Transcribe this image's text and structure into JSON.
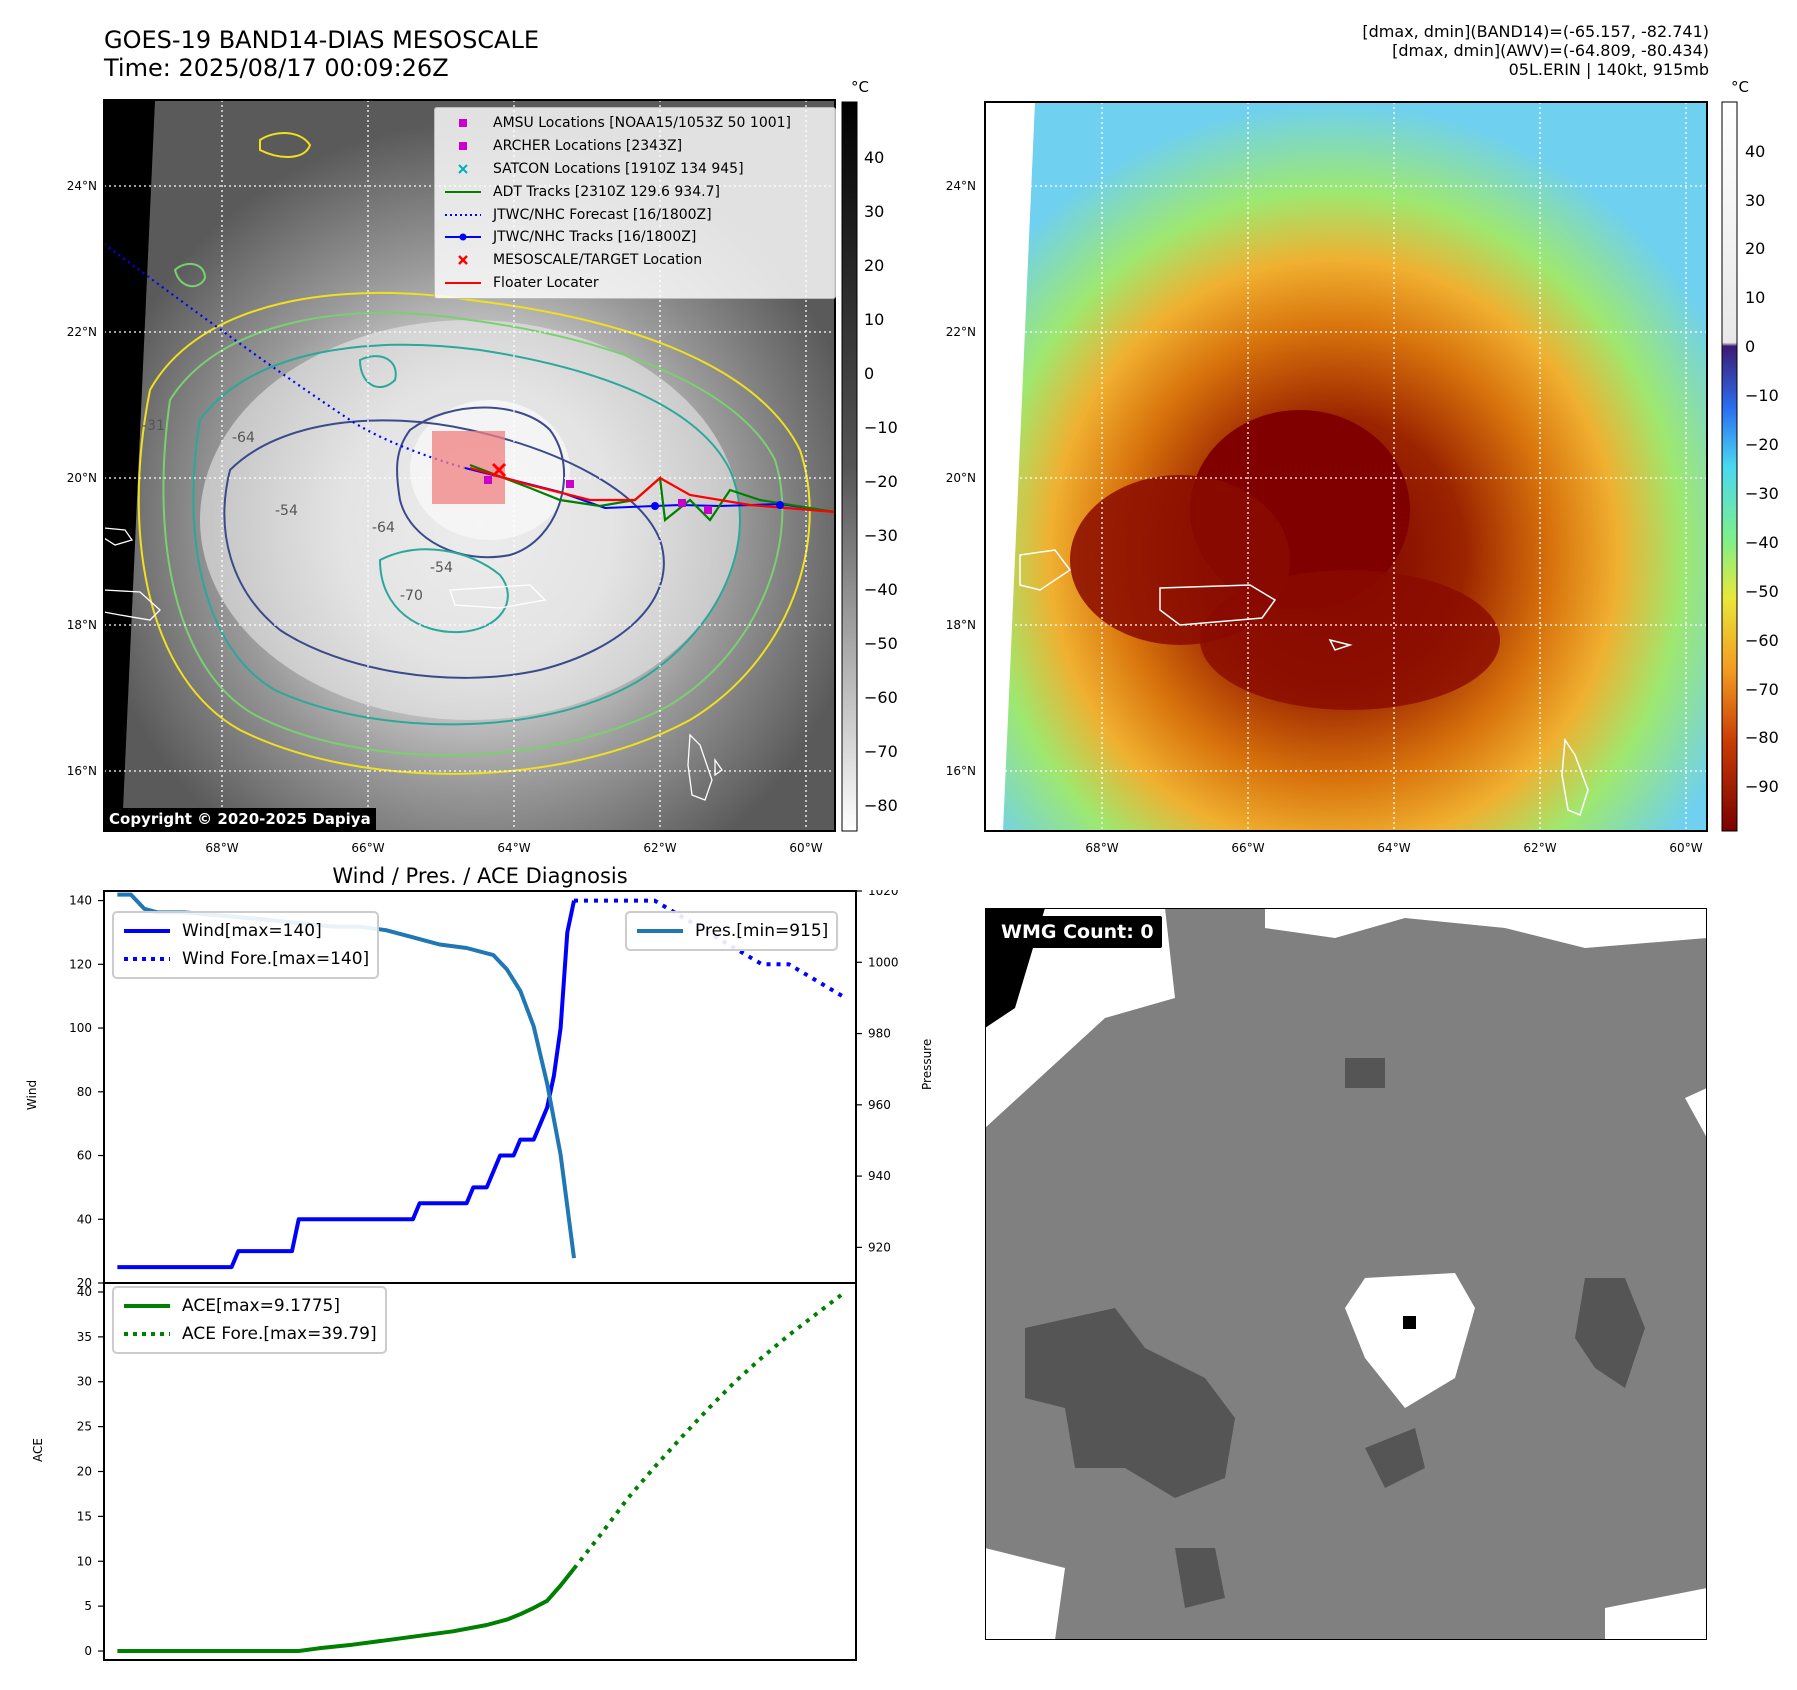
{
  "header": {
    "title_line1": "GOES-19 BAND14-DIAS MESOSCALE",
    "title_line2": "Time: 2025/08/17 00:09:26Z",
    "stat_line1": "[dmax, dmin](BAND14)=(-65.157, -82.741)",
    "stat_line2": "[dmax, dmin](AWV)=(-64.809, -80.434)",
    "stat_line3": "05L.ERIN | 140kt, 915mb"
  },
  "map_axes": {
    "lat_labels": [
      "24°N",
      "22°N",
      "20°N",
      "18°N",
      "16°N"
    ],
    "lon_labels": [
      "68°W",
      "66°W",
      "64°W",
      "62°W",
      "60°W"
    ],
    "colorbar_unit": "°C"
  },
  "ir_panel": {
    "colorbar_ticks": [
      "40",
      "30",
      "20",
      "10",
      "0",
      "−10",
      "−20",
      "−30",
      "−40",
      "−50",
      "−60",
      "−70",
      "−80"
    ],
    "copyright": "Copyright © 2020-2025 Dapiya",
    "contour_labels": [
      "-54",
      "-64",
      "-70",
      "-64",
      "-54",
      "-31"
    ],
    "legend": [
      {
        "label": "AMSU Locations [NOAA15/1053Z 50 1001]",
        "kind": "square",
        "color": "#cc00cc"
      },
      {
        "label": "ARCHER Locations [2343Z]",
        "kind": "square",
        "color": "#cc00cc"
      },
      {
        "label": "SATCON Locations [1910Z 134 945]",
        "kind": "x",
        "color": "#00b3b3"
      },
      {
        "label": "ADT Tracks [2310Z 129.6 934.7]",
        "kind": "line",
        "color": "#008000"
      },
      {
        "label": "JTWC/NHC Forecast [16/1800Z]",
        "kind": "dotted",
        "color": "#0000ff"
      },
      {
        "label": "JTWC/NHC Tracks [16/1800Z]",
        "kind": "line-dot",
        "color": "#0000ff"
      },
      {
        "label": "MESOSCALE/TARGET Location",
        "kind": "x",
        "color": "#ff0000"
      },
      {
        "label": "Floater Locater",
        "kind": "line",
        "color": "#ff0000"
      }
    ]
  },
  "wv_panel": {
    "colorbar_ticks": [
      "40",
      "30",
      "20",
      "10",
      "0",
      "−10",
      "−20",
      "−30",
      "−40",
      "−50",
      "−60",
      "−70",
      "−80",
      "−90"
    ]
  },
  "diagnosis": {
    "title": "Wind / Pres. / ACE Diagnosis",
    "wind_ylabel": "Wind",
    "pres_ylabel": "Pressure",
    "ace_ylabel": "ACE",
    "wind_legend": [
      "Wind[max=140]",
      "Wind Fore.[max=140]"
    ],
    "pres_legend": [
      "Pres.[min=915]"
    ],
    "ace_legend": [
      "ACE[max=9.1775]",
      "ACE Fore.[max=39.79]"
    ]
  },
  "wmg_panel": {
    "label": "WMG Count: 0"
  },
  "chart_data": [
    {
      "type": "line",
      "name": "wind",
      "ylim": [
        20,
        143
      ],
      "yticks": [
        20,
        40,
        60,
        80,
        100,
        120,
        140
      ],
      "x": [
        0,
        1,
        2,
        3,
        4,
        5,
        6,
        7,
        8,
        9,
        10,
        11,
        12,
        13,
        14,
        15,
        16,
        17,
        18,
        19,
        20,
        21,
        22,
        23,
        24,
        25,
        26,
        27,
        28,
        29,
        30,
        31,
        32,
        33,
        34,
        35,
        36,
        37,
        38,
        39,
        40,
        41,
        42,
        43,
        44,
        45,
        46,
        47,
        48,
        49,
        50,
        51,
        52,
        53,
        54,
        55,
        56,
        57,
        58,
        59,
        60,
        61,
        62,
        63,
        64,
        65,
        66,
        67,
        68,
        69,
        70,
        71,
        72,
        73,
        74,
        75,
        76,
        77,
        78,
        79,
        80,
        81,
        82,
        83,
        84,
        85,
        86,
        87,
        88,
        89,
        90,
        91,
        92,
        93,
        94,
        95,
        96,
        97,
        98,
        99,
        100,
        101,
        102,
        103,
        104,
        105,
        106,
        107,
        108
      ],
      "series": [
        {
          "name": "Wind[max=140]",
          "color": "#0000ff",
          "style": "solid",
          "x": [
            0,
            1,
            2,
            3,
            4,
            5,
            6,
            7,
            8,
            9,
            10,
            11,
            12,
            13,
            14,
            15,
            16,
            17,
            18,
            19,
            20,
            21,
            22,
            23,
            24,
            25,
            26,
            27,
            28,
            29,
            30,
            31,
            32,
            33,
            34,
            35,
            36,
            37,
            38,
            39,
            40,
            41,
            42,
            43,
            44,
            45,
            46,
            47,
            48,
            49,
            50,
            51,
            52,
            53,
            54,
            55,
            56,
            57,
            58,
            59,
            60,
            61,
            62,
            63,
            64,
            65,
            66,
            67,
            68
          ],
          "values": [
            25,
            25,
            25,
            25,
            25,
            25,
            25,
            25,
            25,
            25,
            25,
            25,
            25,
            25,
            25,
            25,
            25,
            25,
            30,
            30,
            30,
            30,
            30,
            30,
            30,
            30,
            30,
            40,
            40,
            40,
            40,
            40,
            40,
            40,
            40,
            40,
            40,
            40,
            40,
            40,
            40,
            40,
            40,
            40,
            40,
            45,
            45,
            45,
            45,
            45,
            45,
            45,
            45,
            50,
            50,
            50,
            55,
            60,
            60,
            60,
            65,
            65,
            65,
            70,
            75,
            85,
            100,
            130,
            140
          ]
        },
        {
          "name": "Wind Fore.[max=140]",
          "color": "#0000ff",
          "style": "dotted",
          "x": [
            68,
            72,
            76,
            80,
            84,
            88,
            92,
            96,
            100,
            104,
            108
          ],
          "values": [
            140,
            140,
            140,
            140,
            135,
            130,
            125,
            120,
            120,
            115,
            110
          ]
        }
      ]
    },
    {
      "type": "line",
      "name": "pressure",
      "ylim": [
        910,
        1020
      ],
      "yticks": [
        920,
        940,
        960,
        980,
        1000,
        1020
      ],
      "series": [
        {
          "name": "Pres.[min=915]",
          "color": "#1f77b4",
          "style": "solid",
          "x": [
            0,
            2,
            4,
            6,
            10,
            16,
            22,
            27,
            32,
            36,
            40,
            44,
            46,
            48,
            52,
            56,
            58,
            60,
            62,
            64,
            66,
            68
          ],
          "values": [
            1019,
            1019,
            1015,
            1014,
            1014,
            1013,
            1012,
            1011,
            1010,
            1010,
            1009,
            1007,
            1006,
            1005,
            1004,
            1002,
            998,
            992,
            982,
            966,
            946,
            917
          ]
        }
      ]
    },
    {
      "type": "line",
      "name": "ace",
      "ylim": [
        -1,
        41
      ],
      "yticks": [
        0,
        5,
        10,
        15,
        20,
        25,
        30,
        35,
        40
      ],
      "series": [
        {
          "name": "ACE[max=9.1775]",
          "color": "#008000",
          "style": "solid",
          "x": [
            0,
            10,
            20,
            27,
            30,
            35,
            40,
            45,
            50,
            55,
            58,
            60,
            62,
            64,
            66,
            68
          ],
          "values": [
            0,
            0,
            0,
            0,
            0.3,
            0.7,
            1.2,
            1.7,
            2.2,
            2.9,
            3.5,
            4.1,
            4.8,
            5.6,
            7.3,
            9.18
          ]
        },
        {
          "name": "ACE Fore.[max=39.79]",
          "color": "#008000",
          "style": "dotted",
          "x": [
            68,
            72,
            76,
            80,
            84,
            88,
            92,
            96,
            100,
            104,
            108
          ],
          "values": [
            9.18,
            13,
            17,
            20.5,
            23.8,
            27,
            30,
            32.7,
            35.2,
            37.5,
            39.79
          ]
        }
      ]
    }
  ]
}
